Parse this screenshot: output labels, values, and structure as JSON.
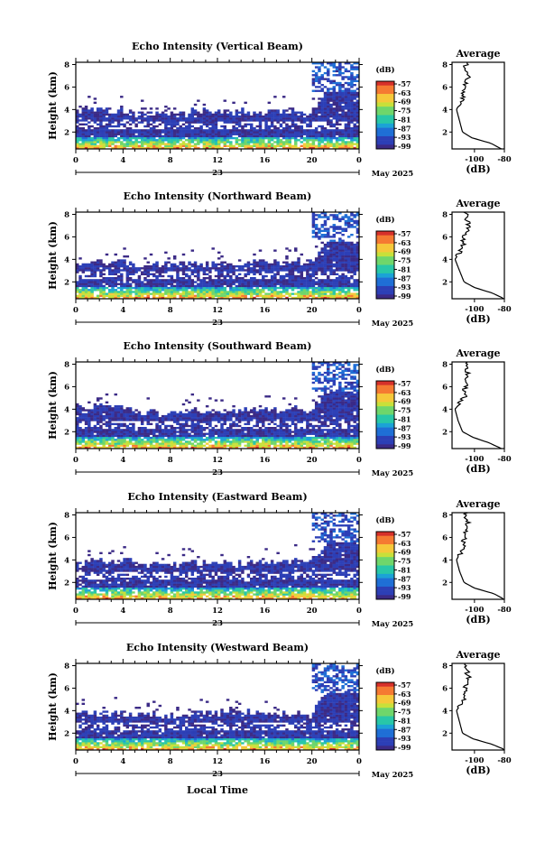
{
  "figure": {
    "xlabel": "Local Time",
    "colorbar_unit": "(dB)",
    "colorbar_ticks": [
      "-57",
      "-63",
      "-69",
      "-75",
      "-81",
      "-87",
      "-93",
      "-99"
    ],
    "date_label": "May 2025",
    "day_label": "23",
    "x_ticks": [
      "0",
      "4",
      "8",
      "12",
      "16",
      "20",
      "0"
    ],
    "y_ticks": [
      "2",
      "4",
      "6",
      "8"
    ],
    "ylabel": "Height (km)",
    "profile_title": "Average",
    "profile_xticks": [
      "-100",
      "-80"
    ],
    "profile_xlabel": "(dB)",
    "profile_yticks": [
      "2",
      "4",
      "6",
      "8"
    ]
  },
  "chart_data": [
    {
      "type": "heatmap",
      "title": "Echo Intensity (Vertical Beam)",
      "xlabel": "",
      "ylabel": "Height (km)",
      "xlim": [
        0,
        24
      ],
      "ylim": [
        0.5,
        8.2
      ],
      "zlim": [
        -99,
        -57
      ],
      "layer_top": [
        3.9,
        3.6,
        3.9,
        3.8,
        3.7
      ],
      "profile": {
        "title": "Average",
        "height": [
          0.5,
          1,
          1.5,
          2,
          3,
          4,
          5,
          6,
          7,
          8
        ],
        "dB": [
          -82,
          -89,
          -102,
          -108,
          -110,
          -112,
          -108,
          -107,
          -104,
          -106
        ]
      }
    },
    {
      "type": "heatmap",
      "title": "Echo Intensity (Northward Beam)",
      "xlabel": "",
      "ylabel": "Height (km)",
      "xlim": [
        0,
        24
      ],
      "ylim": [
        0.5,
        8.2
      ],
      "zlim": [
        -99,
        -57
      ],
      "layer_top": [
        3.8,
        3.5,
        3.6,
        3.7,
        3.9
      ],
      "profile": {
        "title": "Average",
        "height": [
          0.5,
          1,
          1.5,
          2,
          3,
          4,
          5,
          6,
          7,
          8
        ],
        "dB": [
          -80,
          -88,
          -100,
          -107,
          -110,
          -113,
          -108,
          -107,
          -104,
          -106
        ]
      }
    },
    {
      "type": "heatmap",
      "title": "Echo Intensity (Southward Beam)",
      "xlabel": "",
      "ylabel": "Height (km)",
      "xlim": [
        0,
        24
      ],
      "ylim": [
        0.5,
        8.2
      ],
      "zlim": [
        -99,
        -57
      ],
      "layer_top": [
        4.2,
        3.8,
        3.9,
        4.0,
        3.8
      ],
      "profile": {
        "title": "Average",
        "height": [
          0.5,
          1,
          1.5,
          2,
          3,
          4,
          5,
          6,
          7,
          8
        ],
        "dB": [
          -82,
          -90,
          -101,
          -108,
          -111,
          -113,
          -107,
          -106,
          -104,
          -106
        ]
      }
    },
    {
      "type": "heatmap",
      "title": "Echo Intensity (Eastward Beam)",
      "xlabel": "",
      "ylabel": "Height (km)",
      "xlim": [
        0,
        24
      ],
      "ylim": [
        0.5,
        8.2
      ],
      "zlim": [
        -99,
        -57
      ],
      "layer_top": [
        3.9,
        3.6,
        3.7,
        3.9,
        3.8
      ],
      "profile": {
        "title": "Average",
        "height": [
          0.5,
          1,
          1.5,
          2,
          3,
          4,
          5,
          6,
          7,
          8
        ],
        "dB": [
          -80,
          -87,
          -100,
          -107,
          -110,
          -112,
          -108,
          -107,
          -104,
          -106
        ]
      }
    },
    {
      "type": "heatmap",
      "title": "Echo Intensity (Westward Beam)",
      "xlabel": "Local Time",
      "ylabel": "Height (km)",
      "xlim": [
        0,
        24
      ],
      "ylim": [
        0.5,
        8.2
      ],
      "zlim": [
        -99,
        -57
      ],
      "layer_top": [
        3.8,
        3.6,
        3.9,
        3.8,
        3.6
      ],
      "profile": {
        "title": "Average",
        "height": [
          0.5,
          1,
          1.5,
          2,
          3,
          4,
          5,
          6,
          7,
          8
        ],
        "dB": [
          -79,
          -88,
          -101,
          -108,
          -110,
          -112,
          -107,
          -106,
          -104,
          -106
        ]
      }
    }
  ],
  "colors": {
    "colormap": [
      "#3b2a86",
      "#2c3fb6",
      "#1f6fd6",
      "#1ba3d6",
      "#28c7a8",
      "#6fd66b",
      "#c8e03a",
      "#f6c83a",
      "#f57a32",
      "#d6302a"
    ]
  }
}
